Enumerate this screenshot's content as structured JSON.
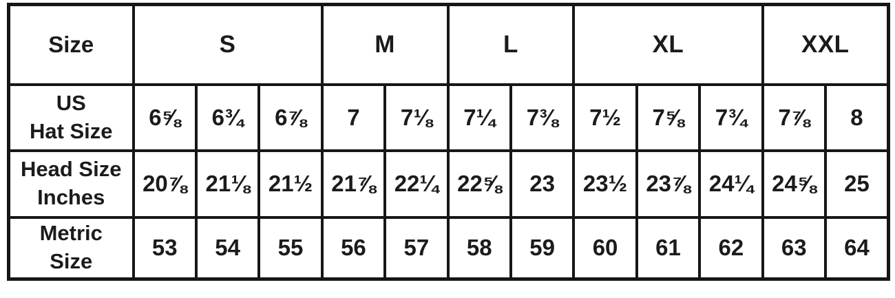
{
  "chart_data": {
    "type": "table",
    "corner_header": "Size",
    "size_groups": [
      {
        "label": "S",
        "span": 3
      },
      {
        "label": "M",
        "span": 2
      },
      {
        "label": "L",
        "span": 2
      },
      {
        "label": "XL",
        "span": 3
      },
      {
        "label": "XXL",
        "span": 2
      }
    ],
    "rows": [
      {
        "header_lines": [
          "US",
          "Hat Size"
        ],
        "cells": [
          "6⅝",
          "6¾",
          "6⅞",
          "7",
          "7⅛",
          "7¼",
          "7⅜",
          "7½",
          "7⅝",
          "7¾",
          "7⅞",
          "8"
        ]
      },
      {
        "header_lines": [
          "Head Size",
          "Inches"
        ],
        "cells": [
          "20⅞",
          "21⅛",
          "21½",
          "21⅞",
          "22¼",
          "22⅝",
          "23",
          "23½",
          "23⅞",
          "24¼",
          "24⅝",
          "25"
        ]
      },
      {
        "header_lines": [
          "Metric",
          "Size"
        ],
        "cells": [
          "53",
          "54",
          "55",
          "56",
          "57",
          "58",
          "59",
          "60",
          "61",
          "62",
          "63",
          "64"
        ]
      }
    ],
    "layout": {
      "grid": "on",
      "header_position": "top-and-left"
    },
    "colors": {
      "border": "#161616",
      "text": "#1b1b1b",
      "background": "#ffffff"
    }
  }
}
